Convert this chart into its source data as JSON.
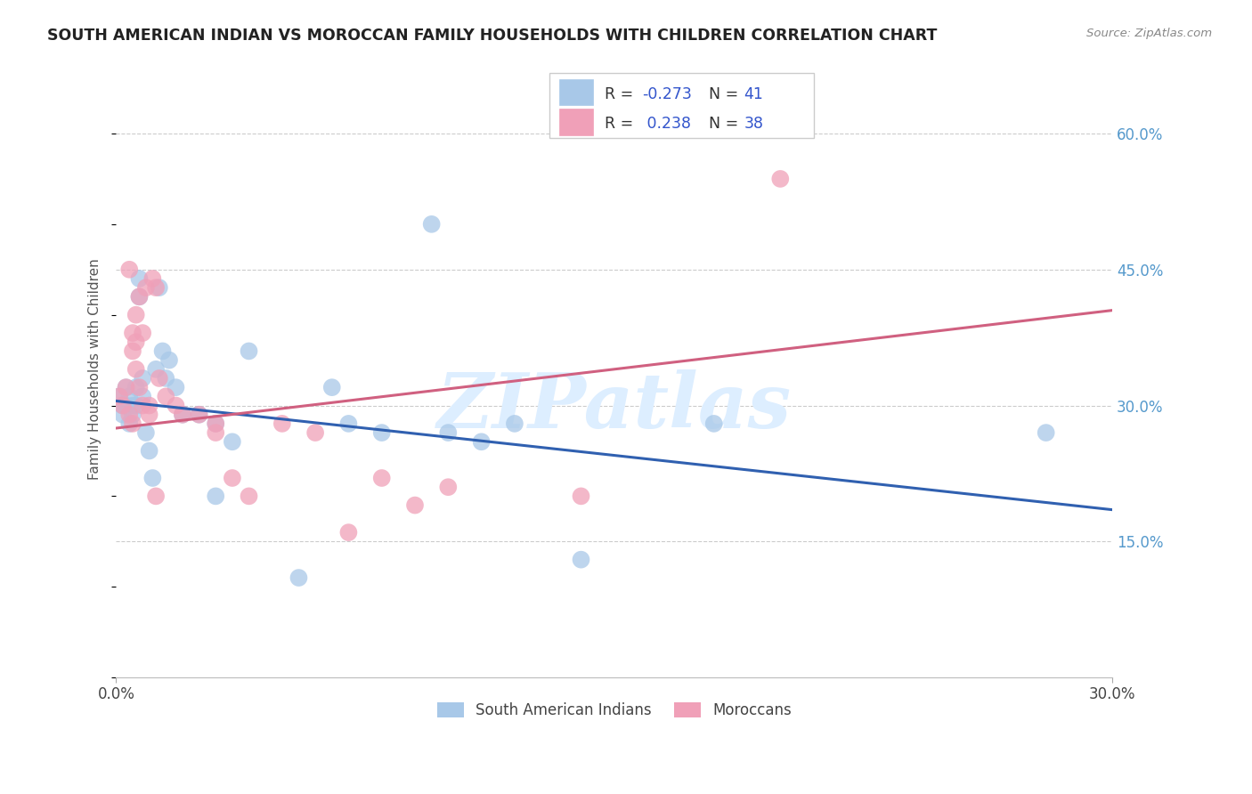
{
  "title": "SOUTH AMERICAN INDIAN VS MOROCCAN FAMILY HOUSEHOLDS WITH CHILDREN CORRELATION CHART",
  "source": "Source: ZipAtlas.com",
  "ylabel": "Family Households with Children",
  "background_color": "#ffffff",
  "grid_color": "#cccccc",
  "blue_scatter_color": "#a8c8e8",
  "pink_scatter_color": "#f0a0b8",
  "blue_line_color": "#3060b0",
  "pink_line_color": "#d06080",
  "watermark": "ZIPatlas",
  "watermark_color": "#ddeeff",
  "legend_R_blue": "-0.273",
  "legend_N_blue": "41",
  "legend_R_pink": "0.238",
  "legend_N_pink": "38",
  "legend_label_color": "#333333",
  "legend_value_color": "#3355cc",
  "xlim": [
    0.0,
    0.3
  ],
  "ylim": [
    0.0,
    0.68
  ],
  "ytick_vals": [
    0.15,
    0.3,
    0.45,
    0.6
  ],
  "ytick_labels": [
    "15.0%",
    "30.0%",
    "45.0%",
    "60.0%"
  ],
  "xtick_vals": [
    0.0,
    0.3
  ],
  "xtick_labels": [
    "0.0%",
    "30.0%"
  ],
  "blue_line_x0": 0.0,
  "blue_line_y0": 0.305,
  "blue_line_x1": 0.3,
  "blue_line_y1": 0.185,
  "pink_line_x0": 0.0,
  "pink_line_y0": 0.275,
  "pink_line_x1": 0.3,
  "pink_line_y1": 0.405,
  "blue_x": [
    0.001,
    0.002,
    0.002,
    0.003,
    0.003,
    0.004,
    0.004,
    0.005,
    0.005,
    0.006,
    0.006,
    0.007,
    0.007,
    0.008,
    0.008,
    0.009,
    0.01,
    0.011,
    0.012,
    0.013,
    0.014,
    0.015,
    0.016,
    0.018,
    0.02,
    0.025,
    0.03,
    0.035,
    0.04,
    0.055,
    0.065,
    0.07,
    0.08,
    0.095,
    0.1,
    0.11,
    0.12,
    0.14,
    0.18,
    0.28,
    0.03
  ],
  "blue_y": [
    0.31,
    0.3,
    0.29,
    0.3,
    0.32,
    0.31,
    0.28,
    0.3,
    0.29,
    0.3,
    0.32,
    0.42,
    0.44,
    0.33,
    0.31,
    0.27,
    0.25,
    0.22,
    0.34,
    0.43,
    0.36,
    0.33,
    0.35,
    0.32,
    0.29,
    0.29,
    0.28,
    0.26,
    0.36,
    0.11,
    0.32,
    0.28,
    0.27,
    0.5,
    0.27,
    0.26,
    0.28,
    0.13,
    0.28,
    0.27,
    0.2
  ],
  "pink_x": [
    0.001,
    0.002,
    0.003,
    0.004,
    0.004,
    0.005,
    0.005,
    0.006,
    0.006,
    0.007,
    0.008,
    0.009,
    0.01,
    0.011,
    0.012,
    0.013,
    0.015,
    0.018,
    0.02,
    0.025,
    0.03,
    0.035,
    0.04,
    0.05,
    0.06,
    0.07,
    0.08,
    0.1,
    0.14,
    0.2,
    0.005,
    0.006,
    0.007,
    0.008,
    0.01,
    0.012,
    0.03,
    0.09
  ],
  "pink_y": [
    0.31,
    0.3,
    0.32,
    0.29,
    0.45,
    0.36,
    0.38,
    0.37,
    0.4,
    0.42,
    0.38,
    0.43,
    0.3,
    0.44,
    0.43,
    0.33,
    0.31,
    0.3,
    0.29,
    0.29,
    0.28,
    0.22,
    0.2,
    0.28,
    0.27,
    0.16,
    0.22,
    0.21,
    0.2,
    0.55,
    0.28,
    0.34,
    0.32,
    0.3,
    0.29,
    0.2,
    0.27,
    0.19
  ]
}
